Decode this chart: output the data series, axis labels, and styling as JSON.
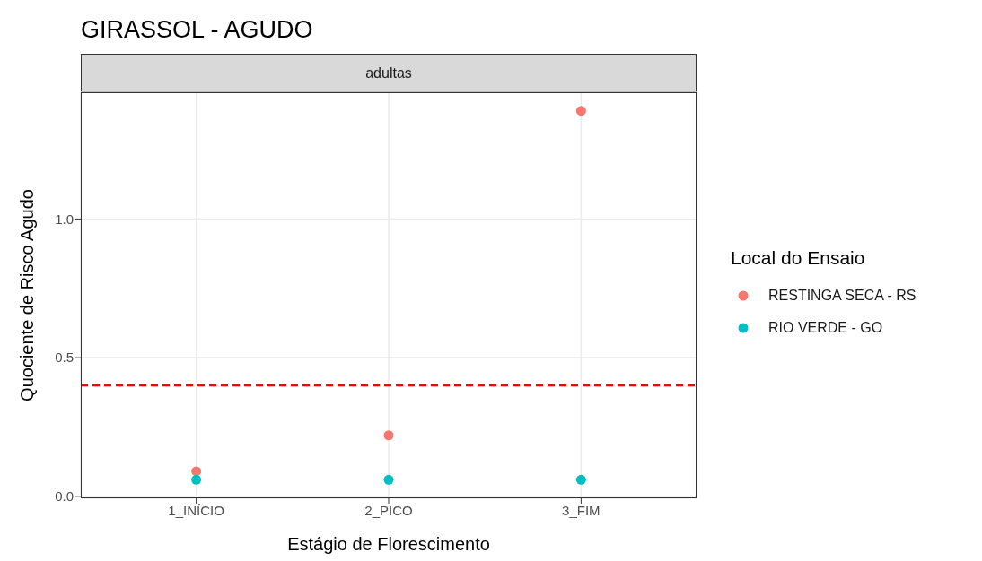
{
  "chart_data": {
    "type": "scatter",
    "title": "GIRASSOL - AGUDO",
    "subtitle": "adultas",
    "xlabel": "Estágio de Florescimento",
    "ylabel": "Quociente de Risco Agudo",
    "legend_title": "Local do Ensaio",
    "categories": [
      "1_INÍCIO",
      "2_PICO",
      "3_FIM"
    ],
    "series": [
      {
        "name": "RESTINGA SECA - RS",
        "color": "#f8766d",
        "values": [
          0.09,
          0.22,
          1.39
        ]
      },
      {
        "name": "RIO VERDE - GO",
        "color": "#00bfc4",
        "values": [
          0.06,
          0.06,
          0.06
        ]
      }
    ],
    "ylim": [
      -0.007,
      1.457
    ],
    "yticks": [
      {
        "value": 0,
        "label": "0.0"
      },
      0.5,
      {
        "value": 1,
        "label": "1.0"
      }
    ],
    "ref_lines": [
      {
        "axis": "y",
        "value": 0.4,
        "color": "#ff0000",
        "line_style": "dashed"
      }
    ],
    "grid": true,
    "legend": "right",
    "marker": "circle"
  }
}
